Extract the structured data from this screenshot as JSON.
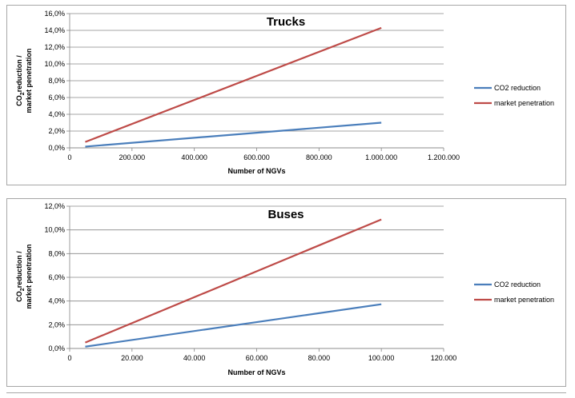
{
  "chart_data": [
    {
      "type": "line",
      "title": "Trucks",
      "xlabel": "Number of NGVs",
      "ylabel_line1": "CO",
      "ylabel_sub": "2",
      "ylabel_line1_rest": "reduction /",
      "ylabel_line2": "market penetration",
      "xlim": [
        0,
        1200000
      ],
      "ylim": [
        0,
        0.16
      ],
      "x_ticks": [
        0,
        200000,
        400000,
        600000,
        800000,
        1000000,
        1200000
      ],
      "x_tick_labels": [
        "0",
        "200.000",
        "400.000",
        "600.000",
        "800.000",
        "1.000.000",
        "1.200.000"
      ],
      "y_ticks": [
        0,
        0.02,
        0.04,
        0.06,
        0.08,
        0.1,
        0.12,
        0.14,
        0.16
      ],
      "y_tick_labels": [
        "0,0%",
        "2,0%",
        "4,0%",
        "6,0%",
        "8,0%",
        "10,0%",
        "12,0%",
        "14,0%",
        "16,0%"
      ],
      "grid": true,
      "legend_position": "right",
      "series": [
        {
          "name": "CO2 reduction",
          "color": "#4a7ebb",
          "x": [
            50000,
            1000000
          ],
          "y": [
            0.0015,
            0.03
          ]
        },
        {
          "name": "market penetration",
          "color": "#be4b48",
          "x": [
            50000,
            1000000
          ],
          "y": [
            0.007,
            0.143
          ]
        }
      ]
    },
    {
      "type": "line",
      "title": "Buses",
      "xlabel": "Number of  NGVs",
      "ylabel_line1": "CO",
      "ylabel_sub": "2",
      "ylabel_line1_rest": "reduction /",
      "ylabel_line2": "market penetration",
      "xlim": [
        0,
        120000
      ],
      "ylim": [
        0,
        0.12
      ],
      "x_ticks": [
        0,
        20000,
        40000,
        60000,
        80000,
        100000,
        120000
      ],
      "x_tick_labels": [
        "0",
        "20.000",
        "40.000",
        "60.000",
        "80.000",
        "100.000",
        "120.000"
      ],
      "y_ticks": [
        0,
        0.02,
        0.04,
        0.06,
        0.08,
        0.1,
        0.12
      ],
      "y_tick_labels": [
        "0,0%",
        "2,0%",
        "4,0%",
        "6,0%",
        "8,0%",
        "10,0%",
        "12,0%"
      ],
      "grid": true,
      "legend_position": "right",
      "series": [
        {
          "name": "CO2 reduction",
          "color": "#4a7ebb",
          "x": [
            5000,
            100000
          ],
          "y": [
            0.0015,
            0.0373
          ]
        },
        {
          "name": "market penetration",
          "color": "#be4b48",
          "x": [
            5000,
            100000
          ],
          "y": [
            0.005,
            0.1088
          ]
        }
      ]
    }
  ]
}
